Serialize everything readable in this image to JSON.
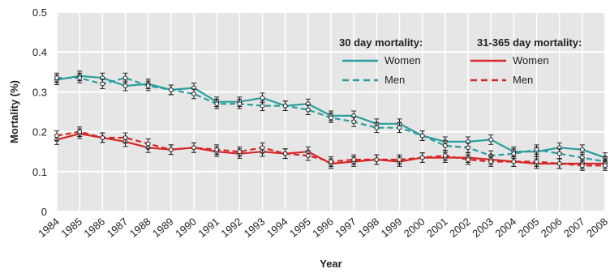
{
  "chart_data": {
    "type": "line",
    "xlabel": "Year",
    "ylabel": "Mortality (%)",
    "ylim": [
      0,
      0.5
    ],
    "yticks": [
      "0",
      "0.1",
      "0.2",
      "0.3",
      "0.4",
      "0.5"
    ],
    "categories": [
      "1984",
      "1985",
      "1986",
      "1987",
      "1988",
      "1989",
      "1990",
      "1991",
      "1992",
      "1993",
      "1994",
      "1995",
      "1996",
      "1997",
      "1998",
      "1999",
      "2000",
      "2001",
      "2002",
      "2003",
      "2004",
      "2005",
      "2006",
      "2007",
      "2008"
    ],
    "grid": true,
    "legend": {
      "placement": "top-right",
      "groups": [
        {
          "title": "30 day mortality:",
          "entries": [
            "Women",
            "Men"
          ]
        },
        {
          "title": "31-365 day mortality:",
          "entries": [
            "Women",
            "Men"
          ]
        }
      ]
    },
    "series": [
      {
        "group": "30 day mortality",
        "name": "Women",
        "color": "#2a9d9f",
        "dash": false,
        "values": [
          0.33,
          0.34,
          0.335,
          0.315,
          0.32,
          0.305,
          0.31,
          0.275,
          0.275,
          0.285,
          0.265,
          0.27,
          0.24,
          0.24,
          0.22,
          0.22,
          0.19,
          0.175,
          0.175,
          0.18,
          0.15,
          0.15,
          0.16,
          0.155,
          0.135
        ]
      },
      {
        "group": "30 day mortality",
        "name": "Men",
        "color": "#2a9d9f",
        "dash": true,
        "values": [
          0.335,
          0.335,
          0.32,
          0.335,
          0.315,
          0.305,
          0.295,
          0.27,
          0.27,
          0.265,
          0.265,
          0.255,
          0.235,
          0.225,
          0.21,
          0.21,
          0.19,
          0.165,
          0.16,
          0.14,
          0.145,
          0.155,
          0.145,
          0.135,
          0.125
        ]
      },
      {
        "group": "31-365 day mortality",
        "name": "Women",
        "color": "#d62728",
        "dash": false,
        "values": [
          0.18,
          0.195,
          0.185,
          0.175,
          0.16,
          0.155,
          0.16,
          0.15,
          0.145,
          0.15,
          0.145,
          0.15,
          0.12,
          0.125,
          0.13,
          0.125,
          0.135,
          0.135,
          0.135,
          0.13,
          0.125,
          0.12,
          0.12,
          0.12,
          0.12
        ]
      },
      {
        "group": "31-365 day mortality",
        "name": "Men",
        "color": "#d62728",
        "dash": true,
        "values": [
          0.19,
          0.2,
          0.185,
          0.185,
          0.17,
          0.155,
          0.16,
          0.155,
          0.15,
          0.16,
          0.145,
          0.14,
          0.125,
          0.13,
          0.13,
          0.13,
          0.135,
          0.14,
          0.13,
          0.125,
          0.125,
          0.125,
          0.12,
          0.115,
          0.115
        ]
      }
    ]
  }
}
